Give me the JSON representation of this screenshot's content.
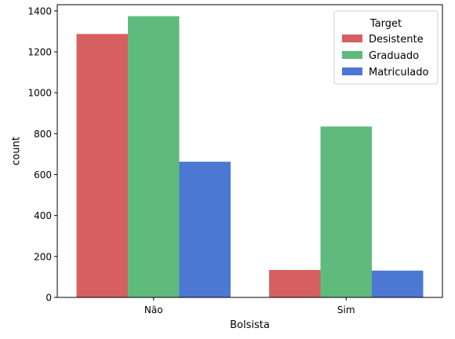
{
  "chart_data": {
    "type": "bar",
    "title": "",
    "xlabel": "Bolsista",
    "ylabel": "count",
    "categories": [
      "Não",
      "Sim"
    ],
    "ylim": [
      0,
      1430
    ],
    "yticks": [
      0,
      200,
      400,
      600,
      800,
      1000,
      1200,
      1400
    ],
    "grid": false,
    "legend": {
      "title": "Target",
      "placement": "top-right"
    },
    "series": [
      {
        "name": "Desistente",
        "color": "#d65f5f",
        "values": [
          1287,
          134
        ]
      },
      {
        "name": "Graduado",
        "color": "#5fba7d",
        "values": [
          1374,
          835
        ]
      },
      {
        "name": "Matriculado",
        "color": "#4c78d4",
        "values": [
          663,
          131
        ]
      }
    ]
  }
}
